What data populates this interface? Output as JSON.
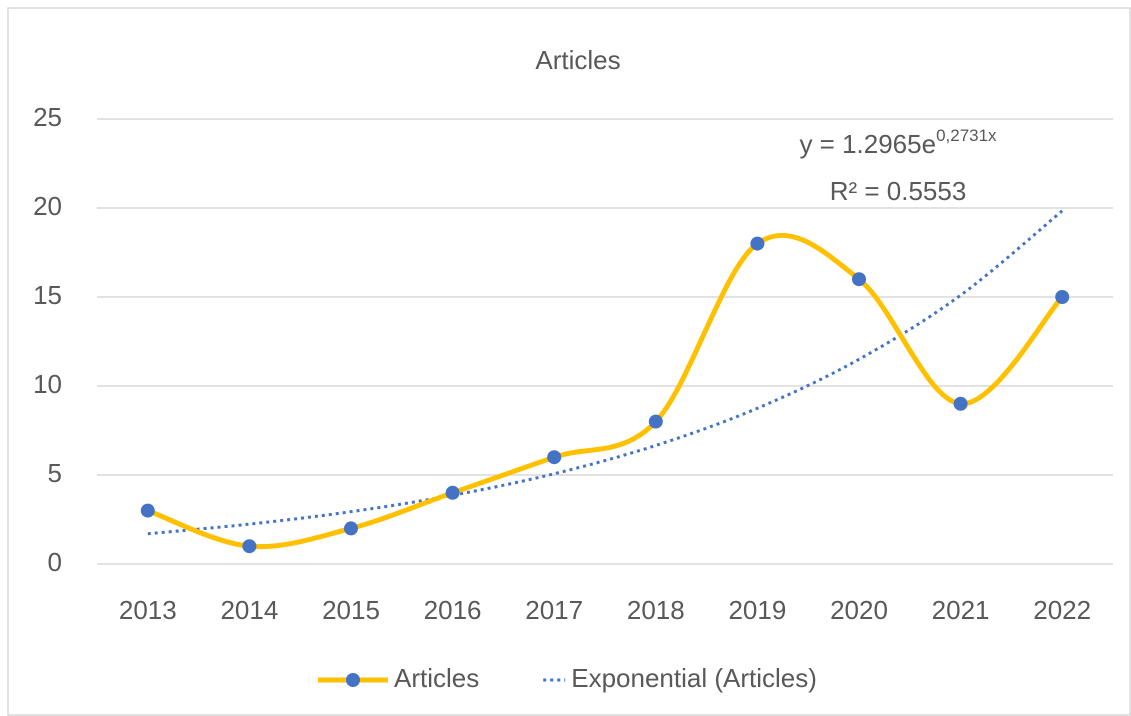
{
  "chart_data": {
    "type": "line",
    "title": "Articles",
    "categories": [
      "2013",
      "2014",
      "2015",
      "2016",
      "2017",
      "2018",
      "2019",
      "2020",
      "2021",
      "2022"
    ],
    "series": [
      {
        "name": "Articles",
        "color": "#ffc000",
        "marker_color": "#4472c4",
        "values": [
          3,
          1,
          2,
          4,
          6,
          8,
          18,
          16,
          9,
          15
        ]
      },
      {
        "name": "Exponential (Articles)",
        "color": "#4472c4",
        "dotted": true,
        "values": [
          1.7,
          2.24,
          2.94,
          3.86,
          5.07,
          6.66,
          8.75,
          11.5,
          15.1,
          19.84
        ]
      }
    ],
    "annotations": {
      "equation": {
        "base": "y = 1.2965e",
        "exponent": "0,2731x"
      },
      "r_squared": "R² = 0.5553"
    },
    "ylim": [
      0,
      25
    ],
    "yticks": [
      0,
      5,
      10,
      15,
      20,
      25
    ],
    "grid": true,
    "legend": "bottom"
  }
}
